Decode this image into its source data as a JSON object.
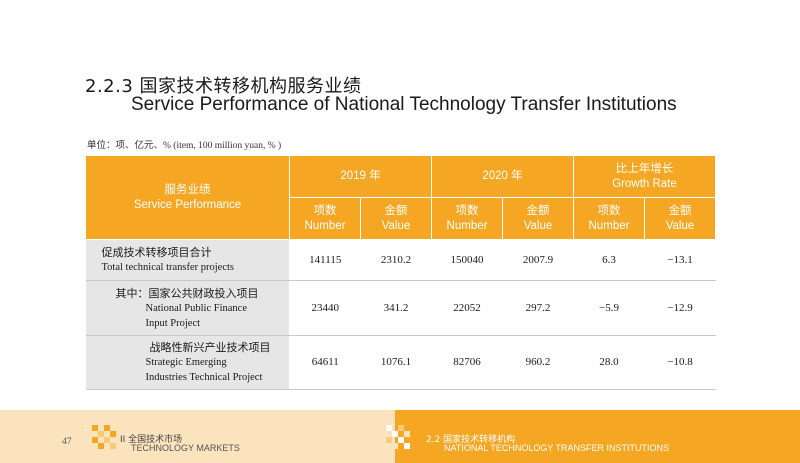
{
  "title": {
    "cn": "2.2.3 国家技术转移机构服务业绩",
    "en": "Service Performance of National Technology Transfer Institutions"
  },
  "unit_note": "单位：项、亿元、% (item, 100 million yuan, % )",
  "table": {
    "header": {
      "service_cn": "服务业绩",
      "service_en": "Service Performance",
      "y2019": "2019 年",
      "y2020": "2020 年",
      "growth_cn": "比上年增长",
      "growth_en": "Growth Rate",
      "number_cn": "项数",
      "number_en": "Number",
      "value_cn": "金额",
      "value_en": "Value"
    },
    "rows": [
      {
        "label_cn": "促成技术转移项目合计",
        "label_en1": "Total technical transfer projects",
        "values": [
          "141115",
          "2310.2",
          "150040",
          "2007.9",
          "6.3",
          "−13.1"
        ]
      },
      {
        "label_cn": "其中：国家公共财政投入项目",
        "label_en1": "National Public Finance",
        "label_en2": "Input Project",
        "values": [
          "23440",
          "341.2",
          "22052",
          "297.2",
          "−5.9",
          "−12.9"
        ]
      },
      {
        "label_cn": "战略性新兴产业技术项目",
        "label_en1": "Strategic Emerging",
        "label_en2": "Industries Technical Project",
        "values": [
          "64611",
          "1076.1",
          "82706",
          "960.2",
          "28.0",
          "−10.8"
        ]
      }
    ]
  },
  "footer": {
    "page_number": "47",
    "left_cn": "II 全国技术市场",
    "left_en": "TECHNOLOGY MARKETS",
    "right_cn": "2.2 国家技术转移机构",
    "right_en": "NATIONAL TECHNOLOGY TRANSFER INSTITUTIONS"
  },
  "colors": {
    "header_orange": "#f5a623",
    "label_gray": "#e6e6e6",
    "footer_light": "#fbe3bd"
  }
}
